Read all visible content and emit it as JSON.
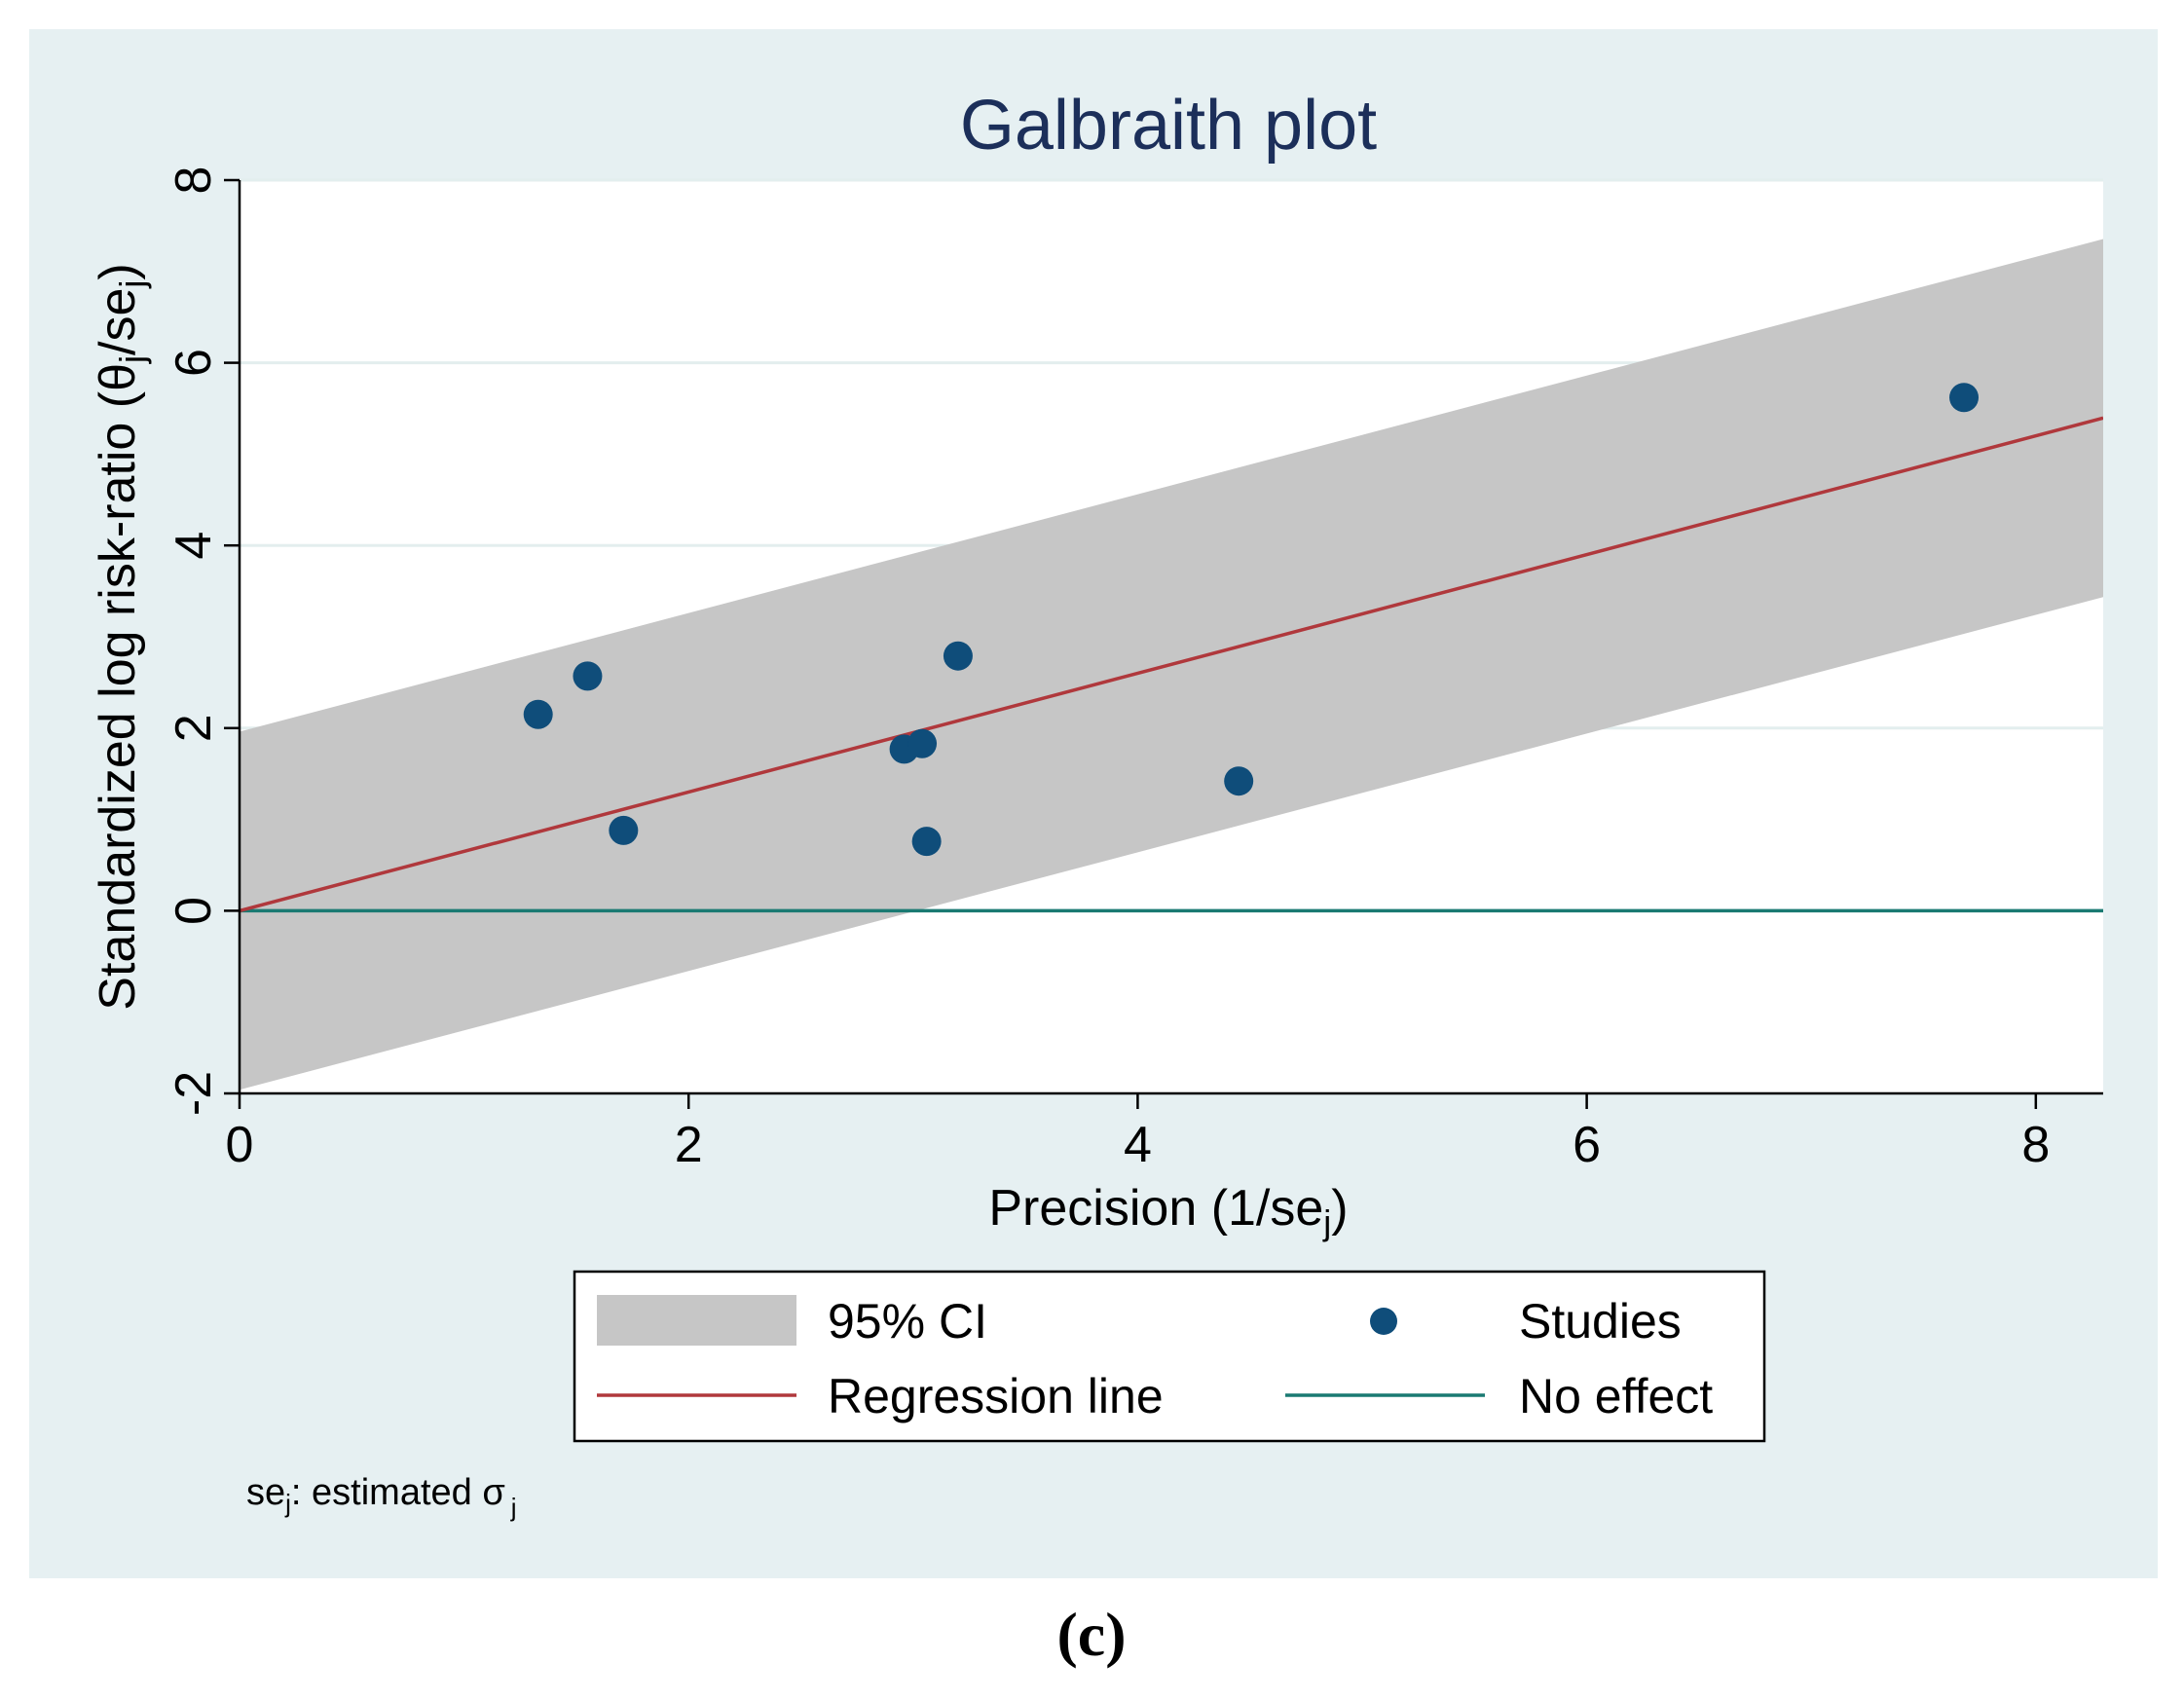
{
  "chart_data": {
    "type": "scatter",
    "title": "Galbraith plot",
    "xlabel": {
      "main": "Precision (1/se",
      "sub": "j",
      "close": ")"
    },
    "ylabel": {
      "main": "Standardized log risk-ratio (θ",
      "sub1": "j",
      "mid": "/se",
      "sub2": "j",
      "close": ")"
    },
    "xlim": [
      0,
      8.3
    ],
    "ylim": [
      -2,
      8
    ],
    "xticks": [
      0,
      2,
      4,
      6,
      8
    ],
    "yticks": [
      -2,
      0,
      2,
      4,
      6,
      8
    ],
    "xtick_labels": [
      "0",
      "2",
      "4",
      "6",
      "8"
    ],
    "ytick_labels": [
      "-2",
      "0",
      "2",
      "4",
      "6",
      "8"
    ],
    "grid": true,
    "series": [
      {
        "name": "Studies",
        "type": "scatter",
        "x": [
          1.33,
          1.55,
          1.71,
          2.96,
          3.04,
          3.06,
          3.2,
          4.45,
          7.68
        ],
        "y": [
          2.15,
          2.57,
          0.88,
          1.77,
          1.83,
          0.76,
          2.79,
          1.42,
          5.62
        ]
      },
      {
        "name": "Regression line",
        "type": "line",
        "intercept": 0,
        "slope": 0.65
      },
      {
        "name": "95% CI",
        "type": "band",
        "lower_intercept": -1.96,
        "upper_intercept": 1.96,
        "slope": 0.65
      },
      {
        "name": "No effect",
        "type": "line",
        "y": 0
      }
    ],
    "legend": {
      "position": "bottom",
      "items": [
        {
          "label": "95% CI",
          "kind": "band"
        },
        {
          "label": "Studies",
          "kind": "marker"
        },
        {
          "label": "Regression line",
          "kind": "regression"
        },
        {
          "label": "No effect",
          "kind": "noeffect"
        }
      ]
    },
    "note": {
      "pre": "se",
      "sub": "j",
      "text": ": estimated σ",
      "sub2": "j"
    },
    "panel_label": "(c)",
    "colors": {
      "outer_background": "#e6f0f2",
      "plot_background": "#ffffff",
      "band": "#c6c6c6",
      "regression": "#b0383c",
      "no_effect": "#1a7a72",
      "marker": "#0f4d7a",
      "title": "#1c2f5a",
      "grid": "#e3eeee"
    }
  }
}
